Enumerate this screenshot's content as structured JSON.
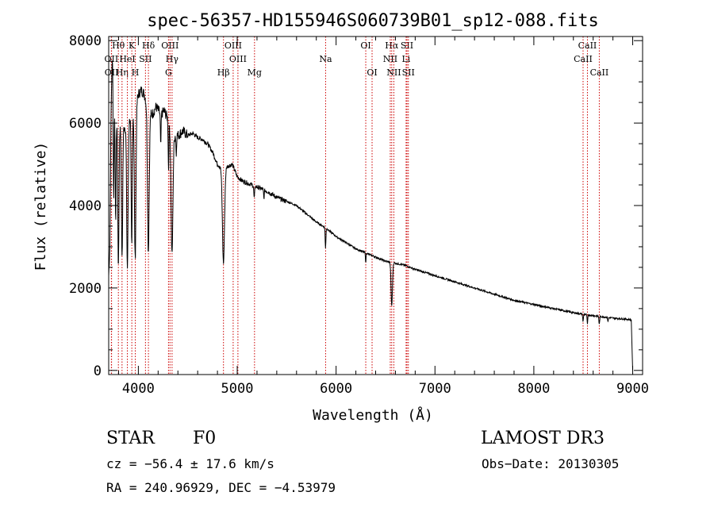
{
  "chart_data": {
    "type": "line",
    "title": "spec-56357-HD155946S060739B01_sp12-088.fits",
    "xlabel": "Wavelength (Å)",
    "ylabel": "Flux (relative)",
    "xlim": [
      3700,
      9100
    ],
    "ylim": [
      -100,
      8100
    ],
    "x_ticks": [
      4000,
      5000,
      6000,
      7000,
      8000,
      9000
    ],
    "y_ticks": [
      0,
      2000,
      4000,
      6000,
      8000
    ],
    "series": [
      {
        "name": "flux",
        "continuum": [
          [
            3700,
            2300
          ],
          [
            3712,
            3000
          ],
          [
            3725,
            6500
          ],
          [
            3740,
            7900
          ],
          [
            3760,
            7000
          ],
          [
            3780,
            6200
          ],
          [
            3800,
            5800
          ],
          [
            3830,
            6000
          ],
          [
            3860,
            5900
          ],
          [
            3900,
            6000
          ],
          [
            3950,
            6400
          ],
          [
            4000,
            6700
          ],
          [
            4030,
            6800
          ],
          [
            4060,
            6700
          ],
          [
            4100,
            6300
          ],
          [
            4140,
            6200
          ],
          [
            4180,
            6400
          ],
          [
            4230,
            6200
          ],
          [
            4260,
            6300
          ],
          [
            4300,
            6100
          ],
          [
            4330,
            5900
          ],
          [
            4350,
            5700
          ],
          [
            4400,
            5700
          ],
          [
            4450,
            5800
          ],
          [
            4500,
            5700
          ],
          [
            4550,
            5750
          ],
          [
            4600,
            5650
          ],
          [
            4650,
            5600
          ],
          [
            4700,
            5500
          ],
          [
            4750,
            5300
          ],
          [
            4800,
            5000
          ],
          [
            4850,
            4900
          ],
          [
            4900,
            4950
          ],
          [
            4950,
            5000
          ],
          [
            5000,
            4700
          ],
          [
            5050,
            4600
          ],
          [
            5100,
            4550
          ],
          [
            5200,
            4450
          ],
          [
            5300,
            4350
          ],
          [
            5400,
            4200
          ],
          [
            5500,
            4100
          ],
          [
            5600,
            4000
          ],
          [
            5700,
            3800
          ],
          [
            5800,
            3600
          ],
          [
            5900,
            3450
          ],
          [
            6000,
            3250
          ],
          [
            6100,
            3100
          ],
          [
            6200,
            2950
          ],
          [
            6300,
            2850
          ],
          [
            6400,
            2750
          ],
          [
            6500,
            2650
          ],
          [
            6600,
            2600
          ],
          [
            6700,
            2550
          ],
          [
            6800,
            2450
          ],
          [
            7000,
            2300
          ],
          [
            7200,
            2150
          ],
          [
            7400,
            2000
          ],
          [
            7600,
            1850
          ],
          [
            7800,
            1700
          ],
          [
            8000,
            1600
          ],
          [
            8200,
            1500
          ],
          [
            8400,
            1400
          ],
          [
            8600,
            1330
          ],
          [
            8800,
            1270
          ],
          [
            8950,
            1240
          ],
          [
            8985,
            1230
          ]
        ],
        "absorption_lines": [
          {
            "wavelength": 3750,
            "depth": 3200,
            "width": 7
          },
          {
            "wavelength": 3770,
            "depth": 3000,
            "width": 7
          },
          {
            "wavelength": 3798,
            "depth": 3400,
            "width": 8
          },
          {
            "wavelength": 3835,
            "depth": 3300,
            "width": 9
          },
          {
            "wavelength": 3889,
            "depth": 3500,
            "width": 10
          },
          {
            "wavelength": 3933,
            "depth": 3300,
            "width": 8
          },
          {
            "wavelength": 3968,
            "depth": 3800,
            "width": 11
          },
          {
            "wavelength": 4101,
            "depth": 3400,
            "width": 12
          },
          {
            "wavelength": 4226,
            "depth": 800,
            "width": 5
          },
          {
            "wavelength": 4305,
            "depth": 1200,
            "width": 5
          },
          {
            "wavelength": 4340,
            "depth": 3000,
            "width": 13
          },
          {
            "wavelength": 4383,
            "depth": 500,
            "width": 4
          },
          {
            "wavelength": 4861,
            "depth": 2300,
            "width": 15
          },
          {
            "wavelength": 5172,
            "depth": 300,
            "width": 6
          },
          {
            "wavelength": 5270,
            "depth": 200,
            "width": 5
          },
          {
            "wavelength": 5893,
            "depth": 500,
            "width": 5
          },
          {
            "wavelength": 6300,
            "depth": 250,
            "width": 4
          },
          {
            "wavelength": 6563,
            "depth": 1050,
            "width": 10
          },
          {
            "wavelength": 8498,
            "depth": 180,
            "width": 5
          },
          {
            "wavelength": 8542,
            "depth": 230,
            "width": 5
          },
          {
            "wavelength": 8662,
            "depth": 200,
            "width": 5
          },
          {
            "wavelength": 8750,
            "depth": 90,
            "width": 5
          }
        ],
        "end_drop": [
          [
            8985,
            1230
          ],
          [
            8995,
            400
          ],
          [
            9000,
            0
          ]
        ]
      }
    ],
    "line_markers": [
      {
        "label": "Hθ",
        "wavelength": 3798,
        "row": 0
      },
      {
        "label": "OII",
        "wavelength": 3727,
        "row": 1
      },
      {
        "label": "OII",
        "wavelength": 3729,
        "row": 2
      },
      {
        "label": "Hη",
        "wavelength": 3835,
        "row": 2
      },
      {
        "label": "HeI",
        "wavelength": 3889,
        "row": 1
      },
      {
        "label": "K",
        "wavelength": 3934,
        "row": 0
      },
      {
        "label": "H",
        "wavelength": 3969,
        "row": 2
      },
      {
        "label": "SII",
        "wavelength": 4072,
        "row": 1
      },
      {
        "label": "Hδ",
        "wavelength": 4102,
        "row": 0
      },
      {
        "label": "OIII",
        "wavelength": 4320,
        "row": 0
      },
      {
        "label": "Hγ",
        "wavelength": 4341,
        "row": 1
      },
      {
        "label": "G",
        "wavelength": 4305,
        "row": 2
      },
      {
        "label": "Hβ",
        "wavelength": 4861,
        "row": 2
      },
      {
        "label": "OIII",
        "wavelength": 4959,
        "row": 0
      },
      {
        "label": "OIII",
        "wavelength": 5007,
        "row": 1
      },
      {
        "label": "Mg",
        "wavelength": 5175,
        "row": 2
      },
      {
        "label": "Na",
        "wavelength": 5894,
        "row": 1
      },
      {
        "label": "OI",
        "wavelength": 6300,
        "row": 0
      },
      {
        "label": "OI",
        "wavelength": 6364,
        "row": 2
      },
      {
        "label": "Hα",
        "wavelength": 6563,
        "row": 0
      },
      {
        "label": "NII",
        "wavelength": 6548,
        "row": 1
      },
      {
        "label": "NII",
        "wavelength": 6584,
        "row": 2
      },
      {
        "label": "SII",
        "wavelength": 6717,
        "row": 0
      },
      {
        "label": "Li",
        "wavelength": 6708,
        "row": 1
      },
      {
        "label": "SII",
        "wavelength": 6731,
        "row": 2
      },
      {
        "label": "CaII",
        "wavelength": 8542,
        "row": 0
      },
      {
        "label": "CaII",
        "wavelength": 8498,
        "row": 1
      },
      {
        "label": "CaII",
        "wavelength": 8662,
        "row": 2
      }
    ],
    "marker_color": "#cc0000"
  },
  "info": {
    "object_class": "STAR",
    "subclass": "F0",
    "survey": "LAMOST DR3",
    "redshift": "cz = −56.4 ± 17.6 km/s",
    "obs_date": "Obs−Date: 20130305",
    "coords": "RA = 240.96929, DEC =  −4.53979"
  }
}
